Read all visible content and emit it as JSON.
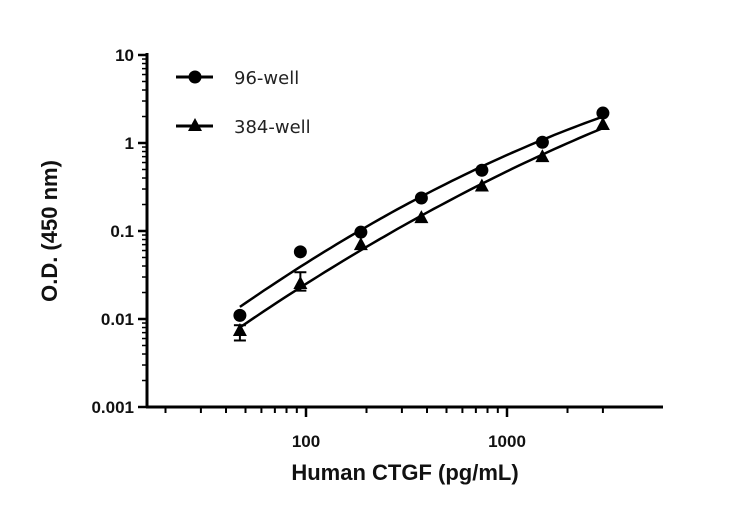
{
  "chart_data": {
    "type": "scatter",
    "title": "",
    "xlabel": "Human CTGF (pg/mL)",
    "ylabel": "O.D. (450 nm)",
    "xscale": "log",
    "yscale": "log",
    "xlim": [
      16,
      6000
    ],
    "ylim": [
      0.001,
      10
    ],
    "x_tick_labels": [
      "100",
      "1000"
    ],
    "y_tick_labels": [
      "10",
      "1",
      "0.1",
      "0.01",
      "0.001"
    ],
    "grid": false,
    "legend_position": "top-left",
    "x": [
      46.9,
      93.75,
      187.5,
      375,
      750,
      1500,
      3000
    ],
    "series": [
      {
        "name": "96-well",
        "marker": "circle",
        "values": [
          0.011,
          0.058,
          0.097,
          0.237,
          0.49,
          1.02,
          2.19
        ],
        "fit": "curve"
      },
      {
        "name": "384-well",
        "marker": "triangle",
        "values": [
          0.0073,
          0.025,
          0.069,
          0.14,
          0.32,
          0.69,
          1.6
        ],
        "fit": "curve",
        "error_bars": [
          [
            0.0057,
            0.0085
          ],
          [
            0.021,
            0.034
          ],
          null,
          null,
          null,
          null,
          null
        ]
      }
    ],
    "colors": {
      "series": "#000000",
      "axis": "#000000"
    }
  }
}
